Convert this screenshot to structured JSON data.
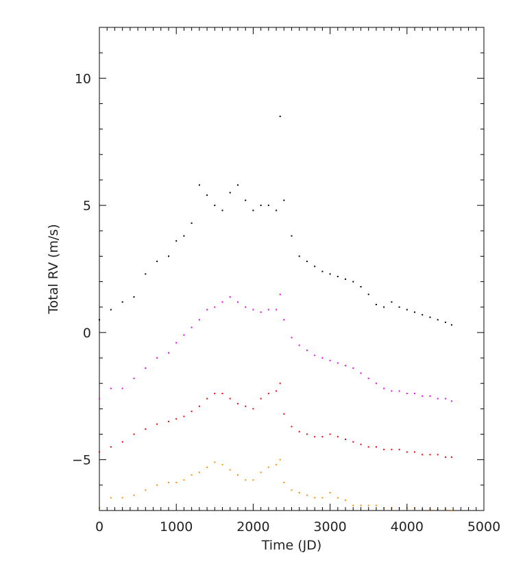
{
  "chart_data": {
    "type": "scatter",
    "title": "",
    "xlabel": "Time (JD)",
    "ylabel": "Total RV (m/s)",
    "xlim": [
      0,
      5000
    ],
    "ylim": [
      -7,
      12
    ],
    "x_ticks": [
      0,
      1000,
      2000,
      3000,
      4000,
      5000
    ],
    "y_ticks": [
      -5,
      0,
      5,
      10
    ],
    "grid": false,
    "legend": "none",
    "series": [
      {
        "color": "#000000",
        "x": [
          0,
          150,
          300,
          450,
          600,
          750,
          900,
          1000,
          1100,
          1200,
          1300,
          1400,
          1500,
          1600,
          1700,
          1800,
          1900,
          2000,
          2100,
          2200,
          2300,
          2350,
          2400,
          2500,
          2600,
          2700,
          2800,
          2900,
          3000,
          3100,
          3200,
          3300,
          3400,
          3500,
          3600,
          3700,
          3800,
          3900,
          4000,
          4100,
          4200,
          4300,
          4400,
          4500,
          4580
        ],
        "y": [
          0.5,
          0.9,
          1.2,
          1.4,
          2.3,
          2.8,
          3.0,
          3.6,
          3.8,
          4.3,
          5.8,
          5.4,
          5.0,
          4.8,
          5.5,
          5.8,
          5.2,
          4.8,
          5.0,
          5.0,
          4.8,
          8.5,
          5.2,
          3.8,
          3.0,
          2.8,
          2.6,
          2.4,
          2.3,
          2.2,
          2.1,
          2.0,
          1.8,
          1.5,
          1.1,
          1.0,
          1.2,
          1.0,
          0.9,
          0.8,
          0.7,
          0.6,
          0.5,
          0.4,
          0.3
        ]
      },
      {
        "color": "#ee00ee",
        "x": [
          0,
          150,
          300,
          450,
          600,
          750,
          900,
          1000,
          1100,
          1200,
          1300,
          1400,
          1500,
          1600,
          1700,
          1800,
          1900,
          2000,
          2100,
          2200,
          2300,
          2350,
          2400,
          2500,
          2600,
          2700,
          2800,
          2900,
          3000,
          3100,
          3200,
          3300,
          3400,
          3500,
          3600,
          3700,
          3800,
          3900,
          4000,
          4100,
          4200,
          4300,
          4400,
          4500,
          4580
        ],
        "y": [
          -2.6,
          -2.2,
          -2.2,
          -1.8,
          -1.4,
          -1.0,
          -0.8,
          -0.4,
          -0.1,
          0.2,
          0.5,
          0.9,
          1.0,
          1.2,
          1.4,
          1.2,
          1.0,
          0.9,
          0.8,
          0.9,
          0.9,
          1.5,
          0.5,
          -0.2,
          -0.5,
          -0.7,
          -0.9,
          -1.0,
          -1.1,
          -1.2,
          -1.3,
          -1.4,
          -1.6,
          -1.8,
          -2.0,
          -2.2,
          -2.3,
          -2.3,
          -2.4,
          -2.4,
          -2.5,
          -2.5,
          -2.6,
          -2.6,
          -2.7
        ]
      },
      {
        "color": "#ee0000",
        "x": [
          0,
          150,
          300,
          450,
          600,
          750,
          900,
          1000,
          1100,
          1200,
          1300,
          1400,
          1500,
          1600,
          1700,
          1800,
          1900,
          2000,
          2100,
          2200,
          2300,
          2350,
          2400,
          2500,
          2600,
          2700,
          2800,
          2900,
          3000,
          3100,
          3200,
          3300,
          3400,
          3500,
          3600,
          3700,
          3800,
          3900,
          4000,
          4100,
          4200,
          4300,
          4400,
          4500,
          4580
        ],
        "y": [
          -4.7,
          -4.5,
          -4.3,
          -4.0,
          -3.8,
          -3.6,
          -3.5,
          -3.4,
          -3.3,
          -3.1,
          -2.9,
          -2.6,
          -2.4,
          -2.4,
          -2.6,
          -2.8,
          -2.9,
          -3.0,
          -2.6,
          -2.4,
          -2.3,
          -2.0,
          -3.2,
          -3.7,
          -3.9,
          -4.0,
          -4.1,
          -4.1,
          -4.0,
          -4.1,
          -4.2,
          -4.3,
          -4.4,
          -4.5,
          -4.5,
          -4.6,
          -4.6,
          -4.6,
          -4.7,
          -4.7,
          -4.8,
          -4.8,
          -4.8,
          -4.9,
          -4.9
        ]
      },
      {
        "color": "#ff8c00",
        "x": [
          0,
          150,
          300,
          450,
          600,
          750,
          900,
          1000,
          1100,
          1200,
          1300,
          1400,
          1500,
          1600,
          1700,
          1800,
          1900,
          2000,
          2100,
          2200,
          2300,
          2350,
          2400,
          2500,
          2600,
          2700,
          2800,
          2900,
          3000,
          3100,
          3200,
          3300,
          3400,
          3500,
          3600,
          3700,
          3800,
          3900,
          4000,
          4100,
          4200,
          4300,
          4400,
          4500,
          4580
        ],
        "y": [
          -6.9,
          -6.5,
          -6.5,
          -6.4,
          -6.2,
          -6.0,
          -5.9,
          -5.9,
          -5.8,
          -5.6,
          -5.5,
          -5.3,
          -5.1,
          -5.2,
          -5.4,
          -5.6,
          -5.8,
          -5.8,
          -5.5,
          -5.3,
          -5.2,
          -5.0,
          -5.9,
          -6.2,
          -6.3,
          -6.4,
          -6.5,
          -6.5,
          -6.3,
          -6.5,
          -6.6,
          -6.8,
          -6.8,
          -6.8,
          -6.8,
          -6.9,
          -6.9,
          -6.9,
          -6.9,
          -6.9,
          -6.95,
          -6.95,
          -6.95,
          -6.95,
          -7.0
        ]
      }
    ]
  }
}
